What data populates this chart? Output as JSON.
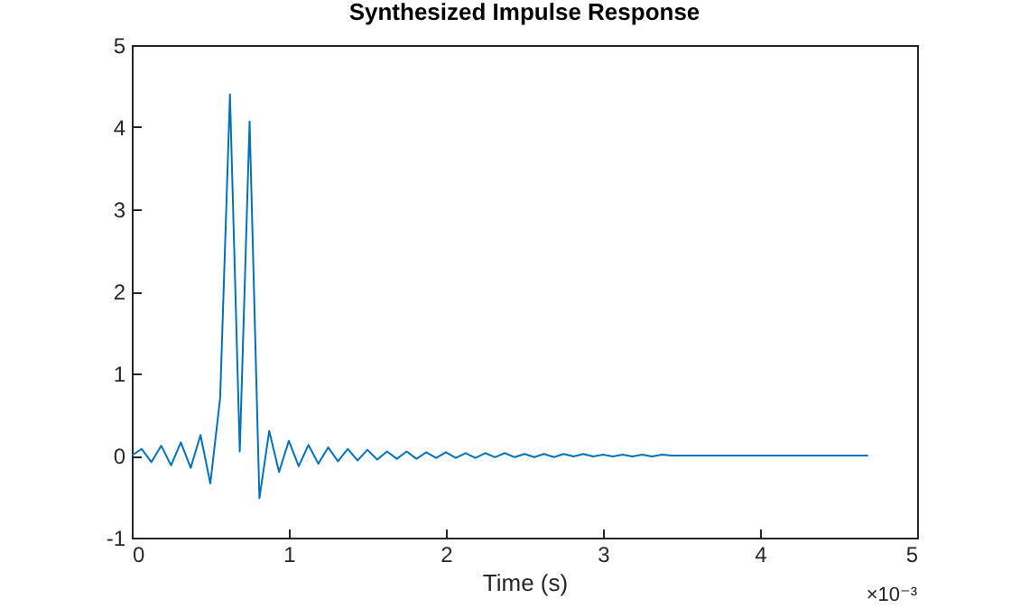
{
  "chart_data": {
    "type": "line",
    "title": "Synthesized Impulse Response",
    "xlabel": "Time (s)",
    "annotations": [
      "×10⁻³"
    ],
    "x": [
      0,
      0.0625,
      0.125,
      0.1875,
      0.25,
      0.3125,
      0.375,
      0.4375,
      0.5,
      0.5625,
      0.625,
      0.6875,
      0.75,
      0.8125,
      0.875,
      0.9375,
      1,
      1.0625,
      1.125,
      1.1875,
      1.25,
      1.3125,
      1.375,
      1.4375,
      1.5,
      1.5625,
      1.625,
      1.6875,
      1.75,
      1.8125,
      1.875,
      1.9375,
      2,
      2.0625,
      2.125,
      2.1875,
      2.25,
      2.3125,
      2.375,
      2.4375,
      2.5,
      2.5625,
      2.625,
      2.6875,
      2.75,
      2.8125,
      2.875,
      2.9375,
      3,
      3.0625,
      3.125,
      3.1875,
      3.25,
      3.3125,
      3.375,
      3.4375,
      4.6875
    ],
    "series": [
      {
        "color": "#0072bd",
        "values": [
          0,
          0.08,
          -0.08,
          0.12,
          -0.12,
          0.16,
          -0.15,
          0.25,
          -0.34,
          0.7,
          4.4,
          0.05,
          4.07,
          -0.52,
          0.3,
          -0.2,
          0.18,
          -0.13,
          0.13,
          -0.1,
          0.1,
          -0.07,
          0.08,
          -0.06,
          0.07,
          -0.05,
          0.05,
          -0.04,
          0.05,
          -0.04,
          0.04,
          -0.03,
          0.04,
          -0.03,
          0.03,
          -0.03,
          0.03,
          -0.02,
          0.03,
          -0.02,
          0.02,
          -0.02,
          0.02,
          -0.02,
          0.02,
          -0.01,
          0.02,
          -0.01,
          0.01,
          -0.01,
          0.01,
          -0.01,
          0.01,
          -0.01,
          0.01,
          0,
          0
        ]
      }
    ],
    "xlim": [
      0,
      5
    ],
    "xticks": [
      0,
      1,
      2,
      3,
      4,
      5
    ],
    "ylim": [
      -1,
      5
    ],
    "yticks": [
      -1,
      0,
      1,
      2,
      3,
      4,
      5
    ],
    "grid": false,
    "marker": "none",
    "line_style": "solid"
  }
}
